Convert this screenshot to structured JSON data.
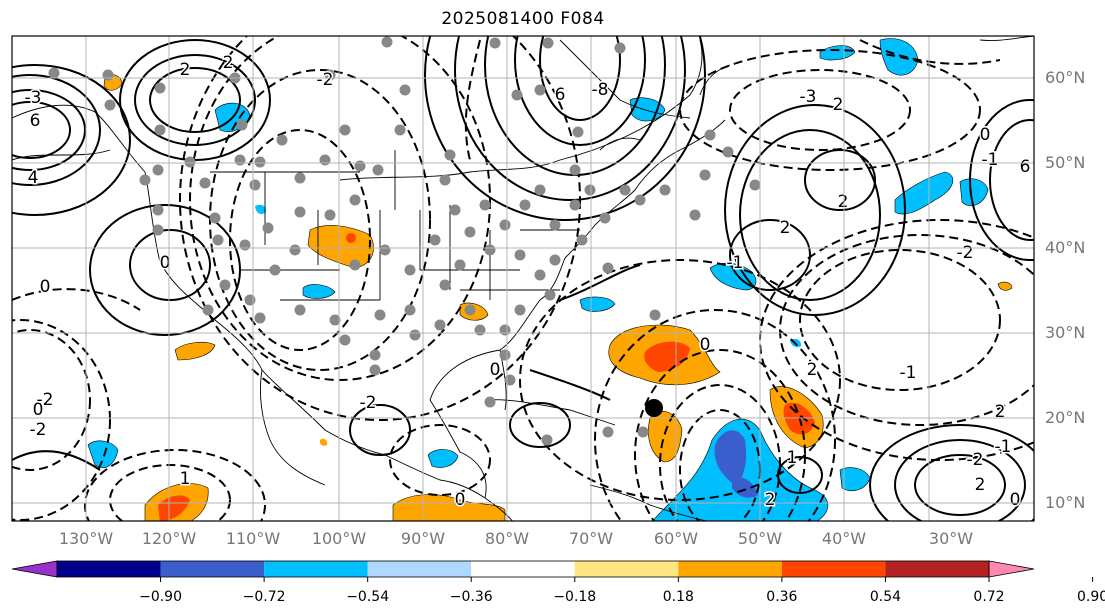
{
  "title": "2025081400 F084",
  "map": {
    "lon_labels": [
      "130°W",
      "120°W",
      "110°W",
      "100°W",
      "90°W",
      "80°W",
      "70°W",
      "60°W",
      "50°W",
      "40°W",
      "30°W"
    ],
    "lat_labels": [
      "60°N",
      "50°N",
      "40°N",
      "30°N",
      "20°N",
      "10°N"
    ],
    "grid": true,
    "contour_labels": [
      "2",
      "2",
      "4",
      "6",
      "0",
      "-3",
      "-2",
      "6",
      "-8",
      "-3",
      "0",
      "-1",
      "-2",
      "2",
      "-2",
      "0",
      "-2",
      "2",
      "0",
      "1",
      "-1",
      "0",
      "-2",
      "0",
      "1",
      "-2",
      "2",
      "-1",
      "2",
      "2",
      "-1",
      "0",
      "0",
      "2",
      "2",
      "6"
    ],
    "colors": {
      "contour": "#000000",
      "station_dot": "#888888",
      "storm_marker": "#000000",
      "land_outline": "#000000"
    }
  },
  "colorbar": {
    "ticks": [
      "−0.90",
      "−0.72",
      "−0.54",
      "−0.36",
      "−0.18",
      "0.18",
      "0.36",
      "0.54",
      "0.72",
      "0.90"
    ],
    "colors": [
      "#9932CC",
      "#00008B",
      "#3A5FCD",
      "#00BFFF",
      "#ADD8FF",
      "#FFFFFF",
      "#FFE680",
      "#FFA500",
      "#FF4500",
      "#B22222",
      "#FF88B0"
    ]
  }
}
